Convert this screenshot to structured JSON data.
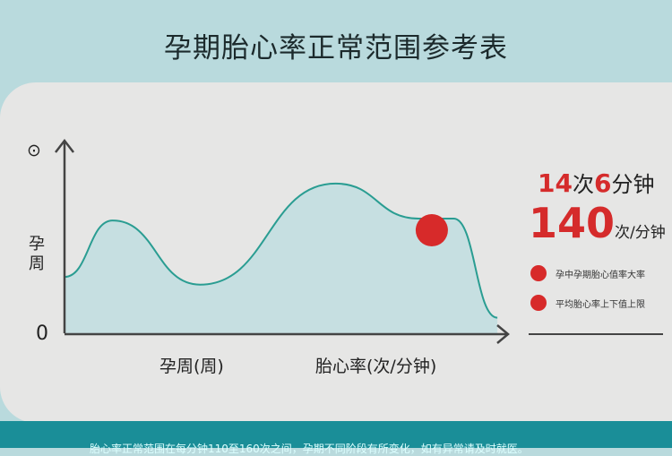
{
  "title": "孕期胎心率正常范围参考表",
  "chart_data": {
    "type": "area",
    "xlabel": "孕周(周)",
    "xlabel2": "胎心率(次/分钟)",
    "ylabel": "孕周",
    "y_top_symbol": "⊙",
    "y_origin_label": "0",
    "x": [
      0,
      11,
      31,
      62,
      81,
      89,
      99
    ],
    "y": [
      29,
      58,
      25,
      77,
      59,
      59,
      8
    ],
    "highlight_point": {
      "x": 84,
      "y": 53
    },
    "colors": {
      "line": "#2a9d92",
      "fill": "#c6dfe1",
      "highlight": "#d72a2a",
      "axis": "#444444"
    }
  },
  "rate_heading": {
    "number1": "14",
    "unit1": "次",
    "number2": "6",
    "unit2": "分钟"
  },
  "rate_value": {
    "number": "140",
    "unit": "次/分钟"
  },
  "legend": [
    {
      "text": "孕中孕期胎心值率大率"
    },
    {
      "text": "平均胎心率上下值上限"
    }
  ],
  "footer_text": "胎心率正常范围在每分钟110至160次之间，孕期不同阶段有所变化，如有异常请及时就医。"
}
